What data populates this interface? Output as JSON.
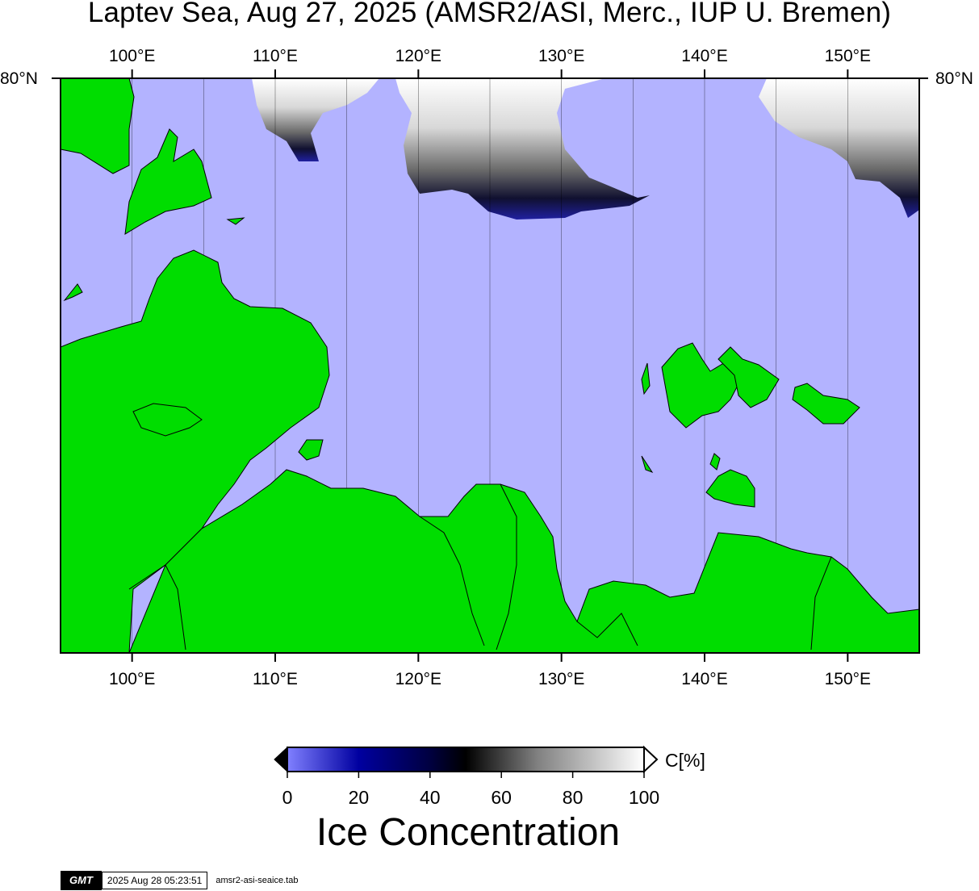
{
  "title": "Laptev Sea, Aug 27, 2025 (AMSR2/ASI, Merc., IUP U. Bremen)",
  "map": {
    "projection": "Mercator",
    "lon_range": [
      95,
      155
    ],
    "lon_ticks": [
      "100°E",
      "110°E",
      "120°E",
      "130°E",
      "140°E",
      "150°E"
    ],
    "lat_label_left": "80°N",
    "lat_label_right": "80°N",
    "colors": {
      "water": "#b3b3ff",
      "land": "#00dd00",
      "coast": "#000000"
    }
  },
  "colorbar": {
    "unit_label": "C[%]",
    "ticks": [
      "0",
      "20",
      "40",
      "60",
      "80",
      "100"
    ],
    "stops": [
      "#8080ff",
      "#0000a0",
      "#000040",
      "#000000",
      "#808080",
      "#ffffff"
    ]
  },
  "caption": "Ice Concentration",
  "footer": {
    "logo": "GMT",
    "timestamp": "2025 Aug 28 05:23:51",
    "filename": "amsr2-asi-seaice.tab"
  }
}
